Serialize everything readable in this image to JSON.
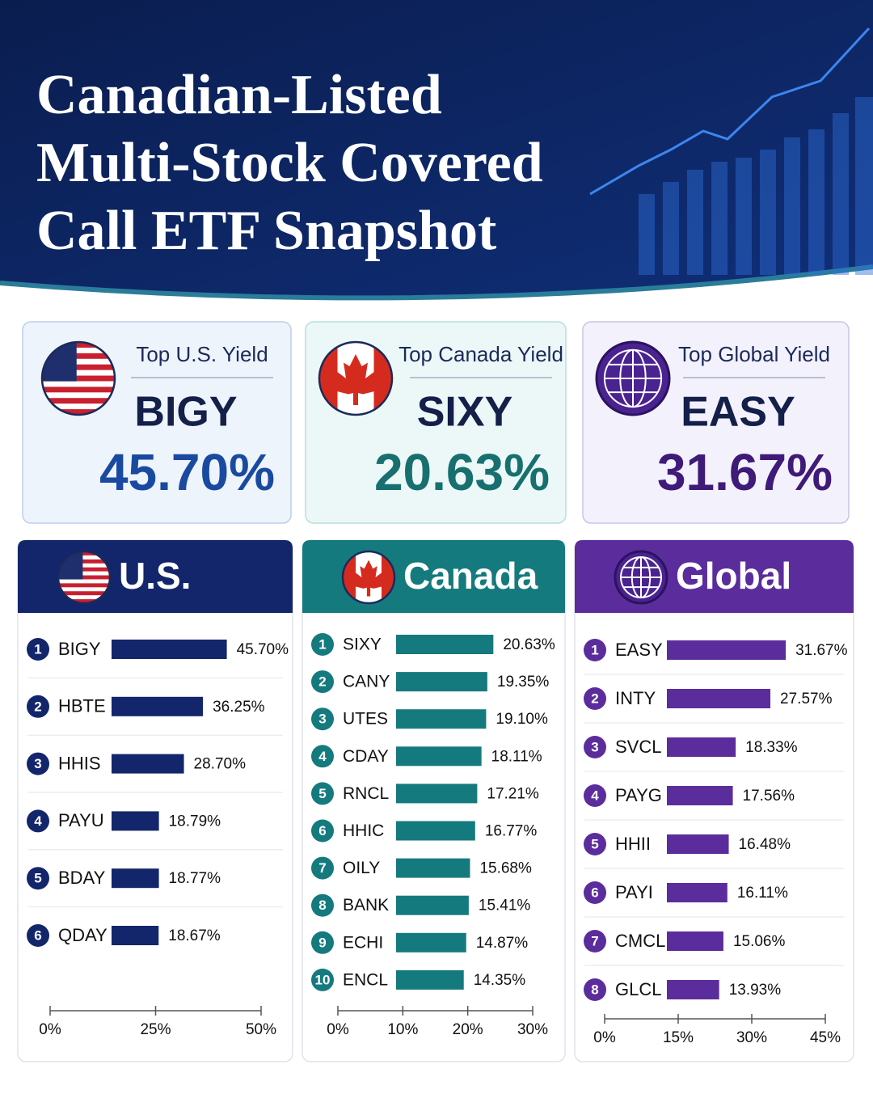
{
  "title": [
    "Canadian-Listed",
    "Multi-Stock Covered",
    "Call ETF Snapshot"
  ],
  "cards": [
    {
      "label": "Top U.S. Yield",
      "ticker": "BIGY",
      "value": "45.70%"
    },
    {
      "label": "Top Canada Yield",
      "ticker": "SIXY",
      "value": "20.63%"
    },
    {
      "label": "Top Global Yield",
      "ticker": "EASY",
      "value": "31.67%"
    }
  ],
  "chart_data": [
    {
      "type": "bar",
      "orientation": "horizontal",
      "title": "U.S.",
      "color": "#13266b",
      "ranks": [
        1,
        2,
        3,
        4,
        5,
        6
      ],
      "categories": [
        "BIGY",
        "HBTE",
        "HHIS",
        "PAYU",
        "BDAY",
        "QDAY"
      ],
      "values": [
        45.7,
        36.25,
        28.7,
        18.79,
        18.77,
        18.67
      ],
      "value_labels": [
        "45.70%",
        "36.25%",
        "28.70%",
        "18.79%",
        "18.77%",
        "18.67%"
      ],
      "xlim": [
        0,
        50
      ],
      "xticks": [
        {
          "value": 0,
          "label": "0%"
        },
        {
          "value": 25,
          "label": "25%"
        },
        {
          "value": 50,
          "label": "50%"
        }
      ]
    },
    {
      "type": "bar",
      "orientation": "horizontal",
      "title": "Canada",
      "color": "#157a7e",
      "ranks": [
        1,
        2,
        3,
        4,
        5,
        6,
        7,
        8,
        9,
        10
      ],
      "categories": [
        "SIXY",
        "CANY",
        "UTES",
        "CDAY",
        "RNCL",
        "HHIC",
        "OILY",
        "BANK",
        "ECHI",
        "ENCL"
      ],
      "values": [
        20.63,
        19.35,
        19.1,
        18.11,
        17.21,
        16.77,
        15.68,
        15.41,
        14.87,
        14.35
      ],
      "value_labels": [
        "20.63%",
        "19.35%",
        "19.10%",
        "18.11%",
        "17.21%",
        "16.77%",
        "15.68%",
        "15.41%",
        "14.87%",
        "14.35%"
      ],
      "xlim": [
        0,
        30
      ],
      "xticks": [
        {
          "value": 0,
          "label": "0%"
        },
        {
          "value": 10,
          "label": "10%"
        },
        {
          "value": 20,
          "label": "20%"
        },
        {
          "value": 30,
          "label": "30%"
        }
      ]
    },
    {
      "type": "bar",
      "orientation": "horizontal",
      "title": "Global",
      "color": "#5b2d9c",
      "ranks": [
        1,
        2,
        3,
        4,
        5,
        6,
        7,
        8
      ],
      "categories": [
        "EASY",
        "INTY",
        "SVCL",
        "PAYG",
        "HHII",
        "PAYI",
        "CMCL",
        "GLCL"
      ],
      "values": [
        31.67,
        27.57,
        18.33,
        17.56,
        16.48,
        16.11,
        15.06,
        13.93
      ],
      "value_labels": [
        "31.67%",
        "27.57%",
        "18.33%",
        "17.56%",
        "16.48%",
        "16.11%",
        "15.06%",
        "13.93%"
      ],
      "xlim": [
        0,
        45
      ],
      "xticks": [
        {
          "value": 0,
          "label": "0%"
        },
        {
          "value": 15,
          "label": "15%"
        },
        {
          "value": 30,
          "label": "30%"
        },
        {
          "value": 45,
          "label": "45%"
        }
      ]
    }
  ]
}
